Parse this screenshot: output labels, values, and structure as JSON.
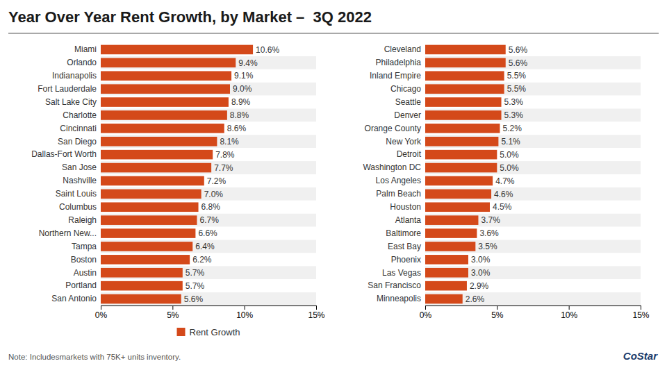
{
  "chart_data": [
    {
      "type": "bar",
      "orientation": "horizontal",
      "title": "Year Over Year Rent Growth, by Market –  3Q 2022",
      "categories": [
        "Miami",
        "Orlando",
        "Indianapolis",
        "Fort Lauderdale",
        "Salt Lake City",
        "Charlotte",
        "Cincinnati",
        "San Diego",
        "Dallas-Fort Worth",
        "San Jose",
        "Nashville",
        "Saint Louis",
        "Columbus",
        "Raleigh",
        "Northern New...",
        "Tampa",
        "Boston",
        "Austin",
        "Portland",
        "San Antonio"
      ],
      "series": [
        {
          "name": "Rent Growth",
          "color": "#d4491a",
          "values": [
            10.6,
            9.4,
            9.1,
            9.0,
            8.9,
            8.8,
            8.6,
            8.1,
            7.8,
            7.7,
            7.2,
            7.0,
            6.8,
            6.7,
            6.6,
            6.4,
            6.2,
            5.7,
            5.7,
            5.6
          ],
          "value_labels": [
            "10.6%",
            "9.4%",
            "9.1%",
            "9.0%",
            "8.9%",
            "8.8%",
            "8.6%",
            "8.1%",
            "7.8%",
            "7.7%",
            "7.2%",
            "7.0%",
            "6.8%",
            "6.7%",
            "6.6%",
            "6.4%",
            "6.2%",
            "5.7%",
            "5.7%",
            "5.6%"
          ]
        }
      ],
      "xlim": [
        0,
        15
      ],
      "xticks": [
        {
          "value": 0,
          "label": "0%"
        },
        {
          "value": 5,
          "label": "5%"
        },
        {
          "value": 10,
          "label": "10%"
        },
        {
          "value": 15,
          "label": "15%"
        }
      ],
      "data_labels": true,
      "grid": false,
      "legend": "bottom",
      "annotations": [
        "Note: Includesmarkets with 75K+ units inventory.",
        "CoStar"
      ]
    },
    {
      "type": "bar",
      "orientation": "horizontal",
      "categories": [
        "Cleveland",
        "Philadelphia",
        "Inland Empire",
        "Chicago",
        "Seattle",
        "Denver",
        "Orange County",
        "New York",
        "Detroit",
        "Washington DC",
        "Los Angeles",
        "Palm Beach",
        "Houston",
        "Atlanta",
        "Baltimore",
        "East Bay",
        "Phoenix",
        "Las Vegas",
        "San Francisco",
        "Minneapolis"
      ],
      "color": "#d4491a",
      "values": [
        5.6,
        5.6,
        5.5,
        5.5,
        5.3,
        5.3,
        5.2,
        5.1,
        5.0,
        5.0,
        4.7,
        4.6,
        4.5,
        3.7,
        3.6,
        3.5,
        3.0,
        3.0,
        2.9,
        2.6
      ],
      "value_labels": [
        "5.6%",
        "5.6%",
        "5.5%",
        "5.5%",
        "5.3%",
        "5.3%",
        "5.2%",
        "5.1%",
        "5.0%",
        "5.0%",
        "4.7%",
        "4.6%",
        "4.5%",
        "3.7%",
        "3.6%",
        "3.5%",
        "3.0%",
        "3.0%",
        "2.9%",
        "2.6%"
      ],
      "xlim": [
        0,
        15
      ],
      "xticks": [
        {
          "value": 0,
          "label": "0%"
        },
        {
          "value": 5,
          "label": "5%"
        },
        {
          "value": 10,
          "label": "10%"
        },
        {
          "value": 15,
          "label": "15%"
        }
      ],
      "data_labels": true,
      "grid": false
    }
  ]
}
